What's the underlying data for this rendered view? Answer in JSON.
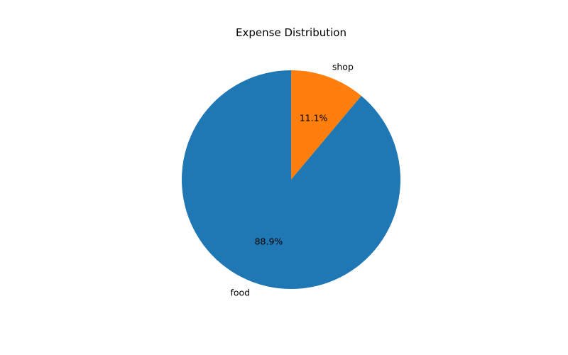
{
  "chart_data": {
    "type": "pie",
    "title": "Expense Distribution",
    "start_angle_deg": 90,
    "direction": "clockwise",
    "legend": "none",
    "slices": [
      {
        "label": "shop",
        "value": 11.1,
        "pct_label": "11.1%",
        "color": "#ff7f0e"
      },
      {
        "label": "food",
        "value": 88.9,
        "pct_label": "88.9%",
        "color": "#1f77b4"
      }
    ]
  }
}
